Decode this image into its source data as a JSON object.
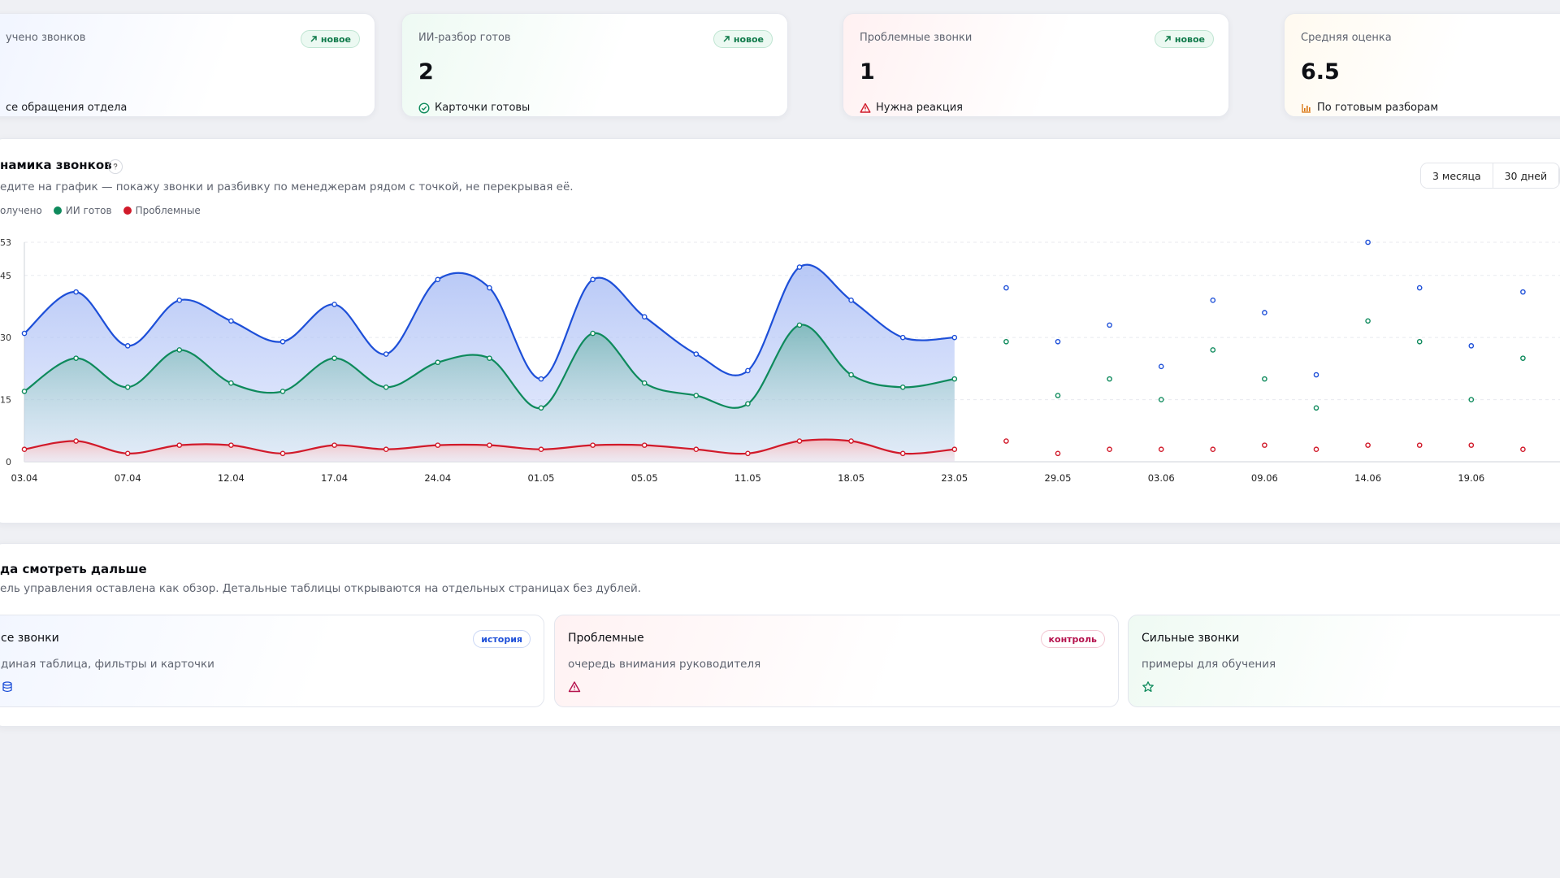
{
  "kpis": [
    {
      "label": "учено звонков",
      "value": "",
      "badge": "новое",
      "note": "се обращения отдела"
    },
    {
      "label": "ИИ-разбор готов",
      "value": "2",
      "badge": "новое",
      "note": "Карточки готовы"
    },
    {
      "label": "Проблемные звонки",
      "value": "1",
      "badge": "новое",
      "note": "Нужна реакция"
    },
    {
      "label": "Средняя оценка",
      "value": "6.5",
      "badge": "",
      "note": "По готовым разборам"
    }
  ],
  "chart_panel": {
    "title": "намика звонков",
    "subtitle": "едите на график — покажу звонки и разбивку по менеджерам рядом с точкой, не перекрывая её.",
    "range_buttons": [
      "3 месяца",
      "30 дней"
    ],
    "legend": [
      "олучено",
      "ИИ готов",
      "Проблемные"
    ]
  },
  "colors": {
    "received": "#1d4fd8",
    "ai_ready": "#0e8a5c",
    "problem": "#d11a2a",
    "badge_green": "#0f7a4a"
  },
  "chart_data": {
    "type": "area",
    "title": "",
    "ylim": [
      0,
      53
    ],
    "yticks": [
      0,
      15,
      30,
      45,
      53
    ],
    "xlabels": [
      "03.04",
      "07.04",
      "12.04",
      "17.04",
      "24.04",
      "01.05",
      "05.05",
      "11.05",
      "18.05",
      "23.05",
      "29.05",
      "03.06",
      "09.06",
      "14.06",
      "19.06"
    ],
    "series": [
      {
        "name": "олучено",
        "values": [
          31,
          41,
          28,
          39,
          34,
          29,
          38,
          26,
          44,
          42,
          20,
          44,
          35,
          26,
          22,
          47,
          39,
          30,
          30,
          42,
          29,
          33,
          23,
          39,
          36,
          21,
          53,
          42,
          28,
          41
        ]
      },
      {
        "name": "ИИ готов",
        "values": [
          17,
          25,
          18,
          27,
          19,
          17,
          25,
          18,
          24,
          25,
          13,
          31,
          19,
          16,
          14,
          33,
          21,
          18,
          20,
          29,
          16,
          20,
          15,
          27,
          20,
          13,
          34,
          29,
          15,
          25
        ]
      },
      {
        "name": "Проблемные",
        "values": [
          3,
          5,
          2,
          4,
          4,
          2,
          4,
          3,
          4,
          4,
          3,
          4,
          4,
          3,
          2,
          5,
          5,
          2,
          3,
          5,
          2,
          3,
          3,
          3,
          4,
          3,
          4,
          4,
          4,
          3
        ]
      }
    ],
    "area_points": 18,
    "grid": true
  },
  "nav_panel": {
    "title": "да смотреть дальше",
    "subtitle": "ель управления оставлена как обзор. Детальные таблицы открываются на отдельных страницах без дублей.",
    "cards": [
      {
        "title": "се звонки",
        "desc": "диная таблица, фильтры и карточки",
        "badge": "история",
        "icon": "database-icon"
      },
      {
        "title": "Проблемные",
        "desc": "очередь внимания руководителя",
        "badge": "контроль",
        "icon": "warning-icon"
      },
      {
        "title": "Сильные звонки",
        "desc": "примеры для обучения",
        "badge": "",
        "icon": "star-icon"
      }
    ]
  }
}
